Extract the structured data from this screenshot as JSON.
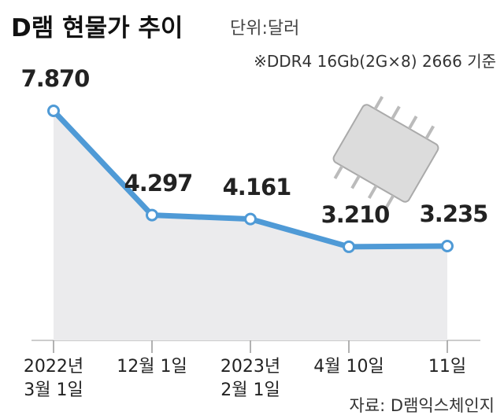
{
  "chart_data": {
    "type": "line",
    "title": "D램 현물가 추이",
    "subtitle": "단위:달러",
    "note": "※DDR4 16Gb(2G×8) 2666 기준",
    "source": "자료: D램익스체인지",
    "categories": [
      "2022년\n3월 1일",
      "12월 1일",
      "2023년\n2월 1일",
      "4월 10일",
      "11일"
    ],
    "values": [
      7.87,
      4.297,
      4.161,
      3.21,
      3.235
    ],
    "value_labels": [
      "7.870",
      "4.297",
      "4.161",
      "3.210",
      "3.235"
    ],
    "color": "#4f9ad6",
    "area_color": "#ebebed",
    "ylim": [
      0,
      10
    ]
  }
}
